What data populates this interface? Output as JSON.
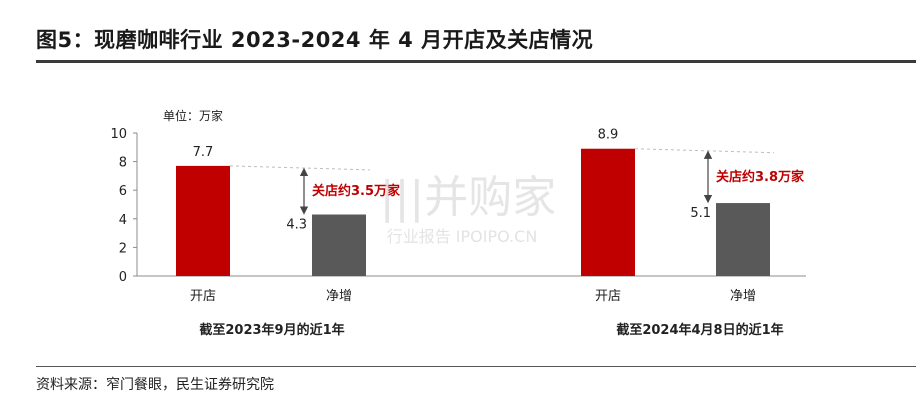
{
  "title": "图5：现磨咖啡行业 2023-2024 年 4 月开店及关店情况",
  "source": "资料来源：窄门餐眼，民生证券研究院",
  "unit_label": "单位：万家",
  "watermark": {
    "main": "|||并购家",
    "sub": "行业报告 IPOIPO.CN"
  },
  "colors": {
    "open": "#c00000",
    "net": "#595959",
    "annotation": "#c00000"
  },
  "chart_data": {
    "type": "bar",
    "ylim": [
      0,
      10
    ],
    "yticks": [
      0,
      2,
      4,
      6,
      8,
      10
    ],
    "groups": [
      {
        "label": "截至2023年9月的近1年",
        "bars": [
          {
            "category": "开店",
            "value": 7.7,
            "label": "7.7",
            "color": "#c00000"
          },
          {
            "category": "净增",
            "value": 4.3,
            "label": "4.3",
            "color": "#595959"
          }
        ],
        "annotation": "关店约3.5万家"
      },
      {
        "label": "截至2024年4月8日的近1年",
        "bars": [
          {
            "category": "开店",
            "value": 8.9,
            "label": "8.9",
            "color": "#c00000"
          },
          {
            "category": "净增",
            "value": 5.1,
            "label": "5.1",
            "color": "#595959"
          }
        ],
        "annotation": "关店约3.8万家"
      }
    ]
  }
}
